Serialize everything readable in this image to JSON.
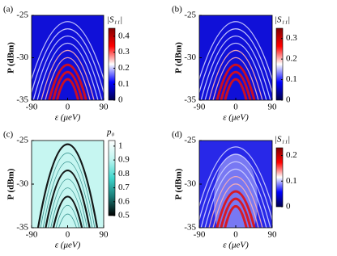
{
  "chart_data": [
    {
      "type": "heatmap",
      "panel_label": "(a)",
      "xlabel": "ε (μeV)",
      "ylabel": "P (dBm)",
      "xlim": [
        -90,
        90
      ],
      "xticks": [
        -90,
        0,
        90
      ],
      "ylim": [
        -35,
        -25
      ],
      "yticks": [
        -35,
        -30,
        -25
      ],
      "colorbar": {
        "label": "|S₁₁|",
        "clim": [
          0,
          0.45
        ],
        "ticks": [
          0,
          0.1,
          0.2,
          0.3,
          0.4
        ],
        "colors": [
          "#00004c",
          "#0000ff",
          "#ffffff",
          "#ff0000",
          "#800000"
        ]
      }
    },
    {
      "type": "heatmap",
      "panel_label": "(b)",
      "xlabel": "ε (μeV)",
      "ylabel": "P (dBm)",
      "xlim": [
        -90,
        90
      ],
      "xticks": [
        -90,
        0,
        90
      ],
      "ylim": [
        -35,
        -25
      ],
      "yticks": [
        -35,
        -30,
        -25
      ],
      "colorbar": {
        "label": "|S₁₁|",
        "clim": [
          0,
          0.35
        ],
        "ticks": [
          0,
          0.1,
          0.2,
          0.3
        ],
        "colors": [
          "#00004c",
          "#0000ff",
          "#ffffff",
          "#ff0000",
          "#800000"
        ]
      }
    },
    {
      "type": "heatmap",
      "panel_label": "(c)",
      "xlabel": "ε (μeV)",
      "ylabel": "P (dBm)",
      "xlim": [
        -90,
        90
      ],
      "xticks": [
        -90,
        0,
        90
      ],
      "ylim": [
        -35,
        -25
      ],
      "yticks": [
        -35,
        -30,
        -25
      ],
      "colorbar": {
        "label": "p₀",
        "clim": [
          0.5,
          1.04
        ],
        "ticks": [
          0.5,
          0.6,
          0.7,
          0.8,
          0.9,
          1
        ],
        "colors": [
          "#000000",
          "#1a7a75",
          "#3fd6cc",
          "#bff5f0",
          "#ffffff"
        ]
      }
    },
    {
      "type": "heatmap",
      "panel_label": "(d)",
      "xlabel": "ε (μeV)",
      "ylabel": "P (dBm)",
      "xlim": [
        -90,
        90
      ],
      "xticks": [
        -90,
        0,
        90
      ],
      "ylim": [
        -35,
        -25
      ],
      "yticks": [
        -35,
        -30,
        -25
      ],
      "colorbar": {
        "label": "|S₁₁|",
        "clim": [
          0,
          0.23
        ],
        "ticks": [
          0,
          0.1,
          0.2
        ],
        "colors": [
          "#00004c",
          "#0000ff",
          "#ffffff",
          "#ff0000",
          "#800000"
        ]
      }
    }
  ]
}
